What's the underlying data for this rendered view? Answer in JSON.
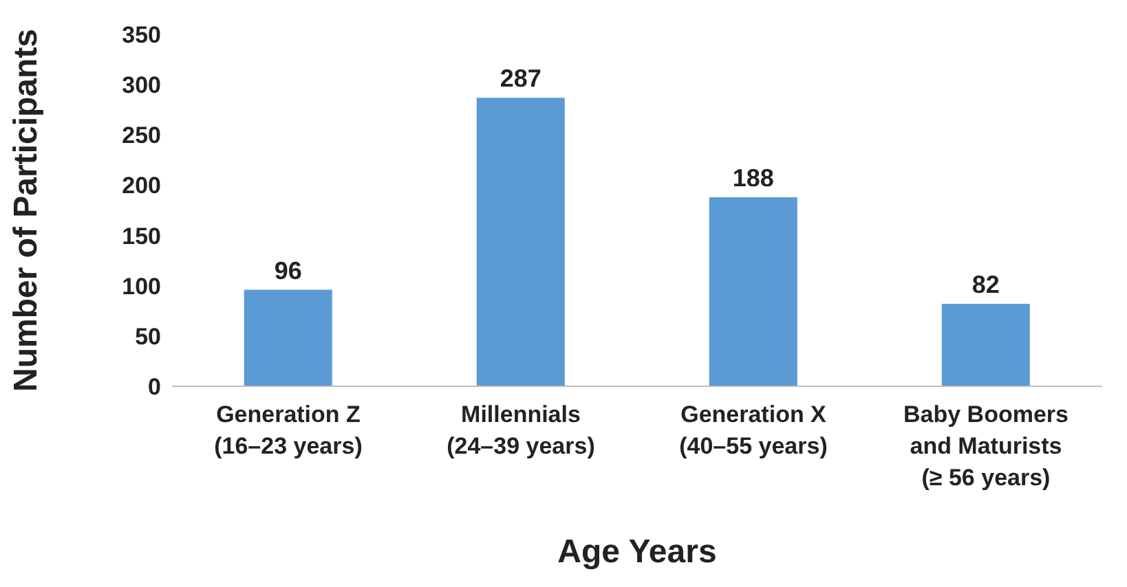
{
  "chart_data": {
    "type": "bar",
    "xlabel": "Age Years",
    "ylabel": "Number of Participants",
    "categories": [
      "Generation Z\n(16–23 years)",
      "Millennials\n(24–39 years)",
      "Generation X\n(40–55 years)",
      "Baby Boomers\nand Maturists\n(≥ 56 years)"
    ],
    "values": [
      96,
      287,
      188,
      82
    ],
    "color": "#5b9bd5",
    "ylim": [
      0,
      350
    ],
    "yticks": [
      0,
      50,
      100,
      150,
      200,
      250,
      300,
      350
    ],
    "data_labels": true,
    "grid": false,
    "legend": false
  }
}
